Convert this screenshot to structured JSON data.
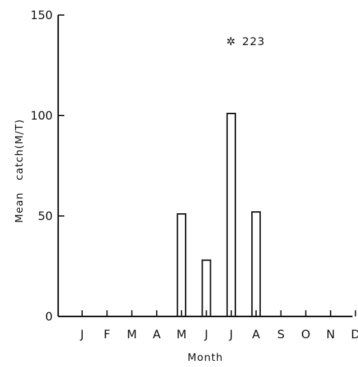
{
  "chart_data": {
    "type": "bar",
    "categories": [
      "J",
      "F",
      "M",
      "A",
      "M",
      "J",
      "J",
      "A",
      "S",
      "O",
      "N",
      "D"
    ],
    "values": [
      0,
      0,
      0,
      0,
      51,
      28,
      101,
      52,
      0,
      0,
      0,
      0
    ],
    "xlabel": "Month",
    "ylabel": "Mean   catch(M/T)",
    "ylim": [
      0,
      150
    ],
    "yticks": [
      "0",
      "50",
      "100",
      "150"
    ],
    "ytick_values": [
      0,
      50,
      100,
      150
    ],
    "annotation": {
      "symbol": "✲",
      "text": "223",
      "category_index": 6,
      "y": 137
    },
    "grid": false,
    "legend": "none"
  }
}
